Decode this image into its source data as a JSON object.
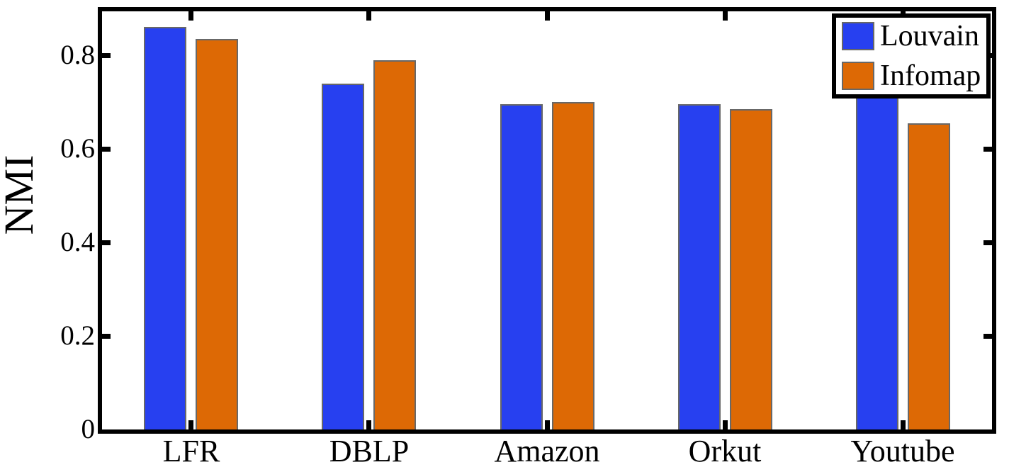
{
  "chart_data": {
    "type": "bar",
    "title": "",
    "xlabel": "",
    "ylabel": "NMI",
    "categories": [
      "LFR",
      "DBLP",
      "Amazon",
      "Orkut",
      "Youtube"
    ],
    "series": [
      {
        "name": "Louvain",
        "color": "#2740F0",
        "values": [
          0.86,
          0.74,
          0.695,
          0.695,
          0.71
        ]
      },
      {
        "name": "Infomap",
        "color": "#DD6905",
        "values": [
          0.835,
          0.79,
          0.7,
          0.685,
          0.655
        ]
      }
    ],
    "ylim": [
      0,
      0.895
    ],
    "yticks": [
      0,
      0.2,
      0.4,
      0.6,
      0.8
    ],
    "ytick_labels": [
      "0",
      "0.2",
      "0.4",
      "0.6",
      "0.8"
    ],
    "grid": false,
    "legend_position": "top-right",
    "colors": {
      "axis": "#000000",
      "background": "#ffffff",
      "bar_edge": "#686868"
    }
  }
}
